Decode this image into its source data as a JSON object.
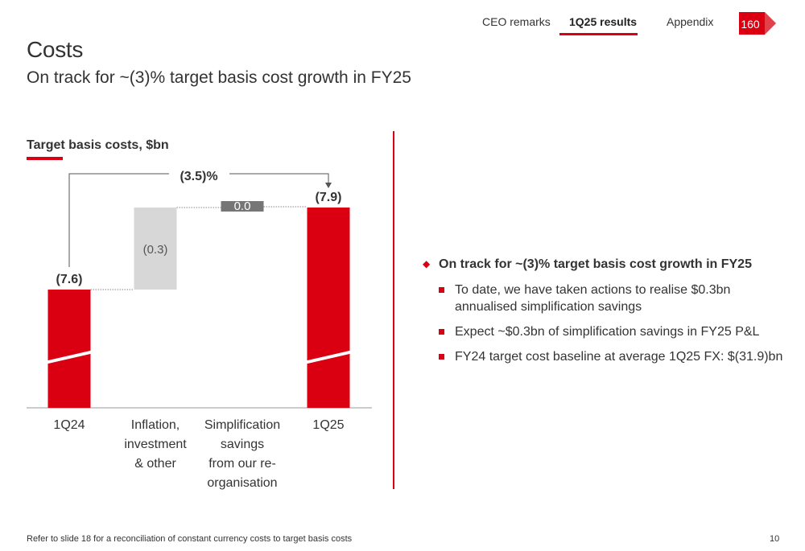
{
  "nav": {
    "items": [
      {
        "label": "CEO remarks",
        "active": false
      },
      {
        "label": "1Q25 results",
        "active": true
      },
      {
        "label": "Appendix",
        "active": false
      }
    ],
    "logo_text": "160"
  },
  "header": {
    "title": "Costs",
    "subtitle": "On track for ~(3)% target basis cost growth in FY25"
  },
  "chart_heading": "Target basis costs, $bn",
  "chart_data": {
    "type": "bar",
    "subtype": "waterfall",
    "title": "Target basis costs, $bn",
    "categories": [
      "1Q24",
      "Inflation, investment & other",
      "Simplification savings from our re-organisation",
      "1Q25"
    ],
    "category_lines": [
      [
        "1Q24"
      ],
      [
        "Inflation,",
        "investment",
        "& other"
      ],
      [
        "Simplification",
        "savings",
        "from our re-",
        "organisation"
      ],
      [
        "1Q25"
      ]
    ],
    "values": [
      -7.6,
      -0.3,
      0.0,
      -7.9
    ],
    "kinds": [
      "total",
      "delta",
      "delta",
      "total"
    ],
    "value_labels": [
      "(7.6)",
      "(0.3)",
      "0.0",
      "(7.9)"
    ],
    "change_annotation": "(3.5)%",
    "axis_break": true,
    "colors": {
      "total": "#db0011",
      "increase": "#d7d7d7",
      "flat": "#767676"
    }
  },
  "bullets": {
    "main": "On track for ~(3)% target basis cost growth in FY25",
    "subs": [
      "To date, we have taken actions to realise $0.3bn annualised simplification savings",
      "Expect ~$0.3bn of simplification savings in FY25 P&L",
      "FY24 target cost baseline at average 1Q25 FX: $(31.9)bn"
    ]
  },
  "footer": {
    "note": "Refer to slide 18 for a reconciliation of constant currency costs to target basis costs",
    "page": "10"
  },
  "colors": {
    "accent": "#db0011",
    "text": "#333333"
  }
}
